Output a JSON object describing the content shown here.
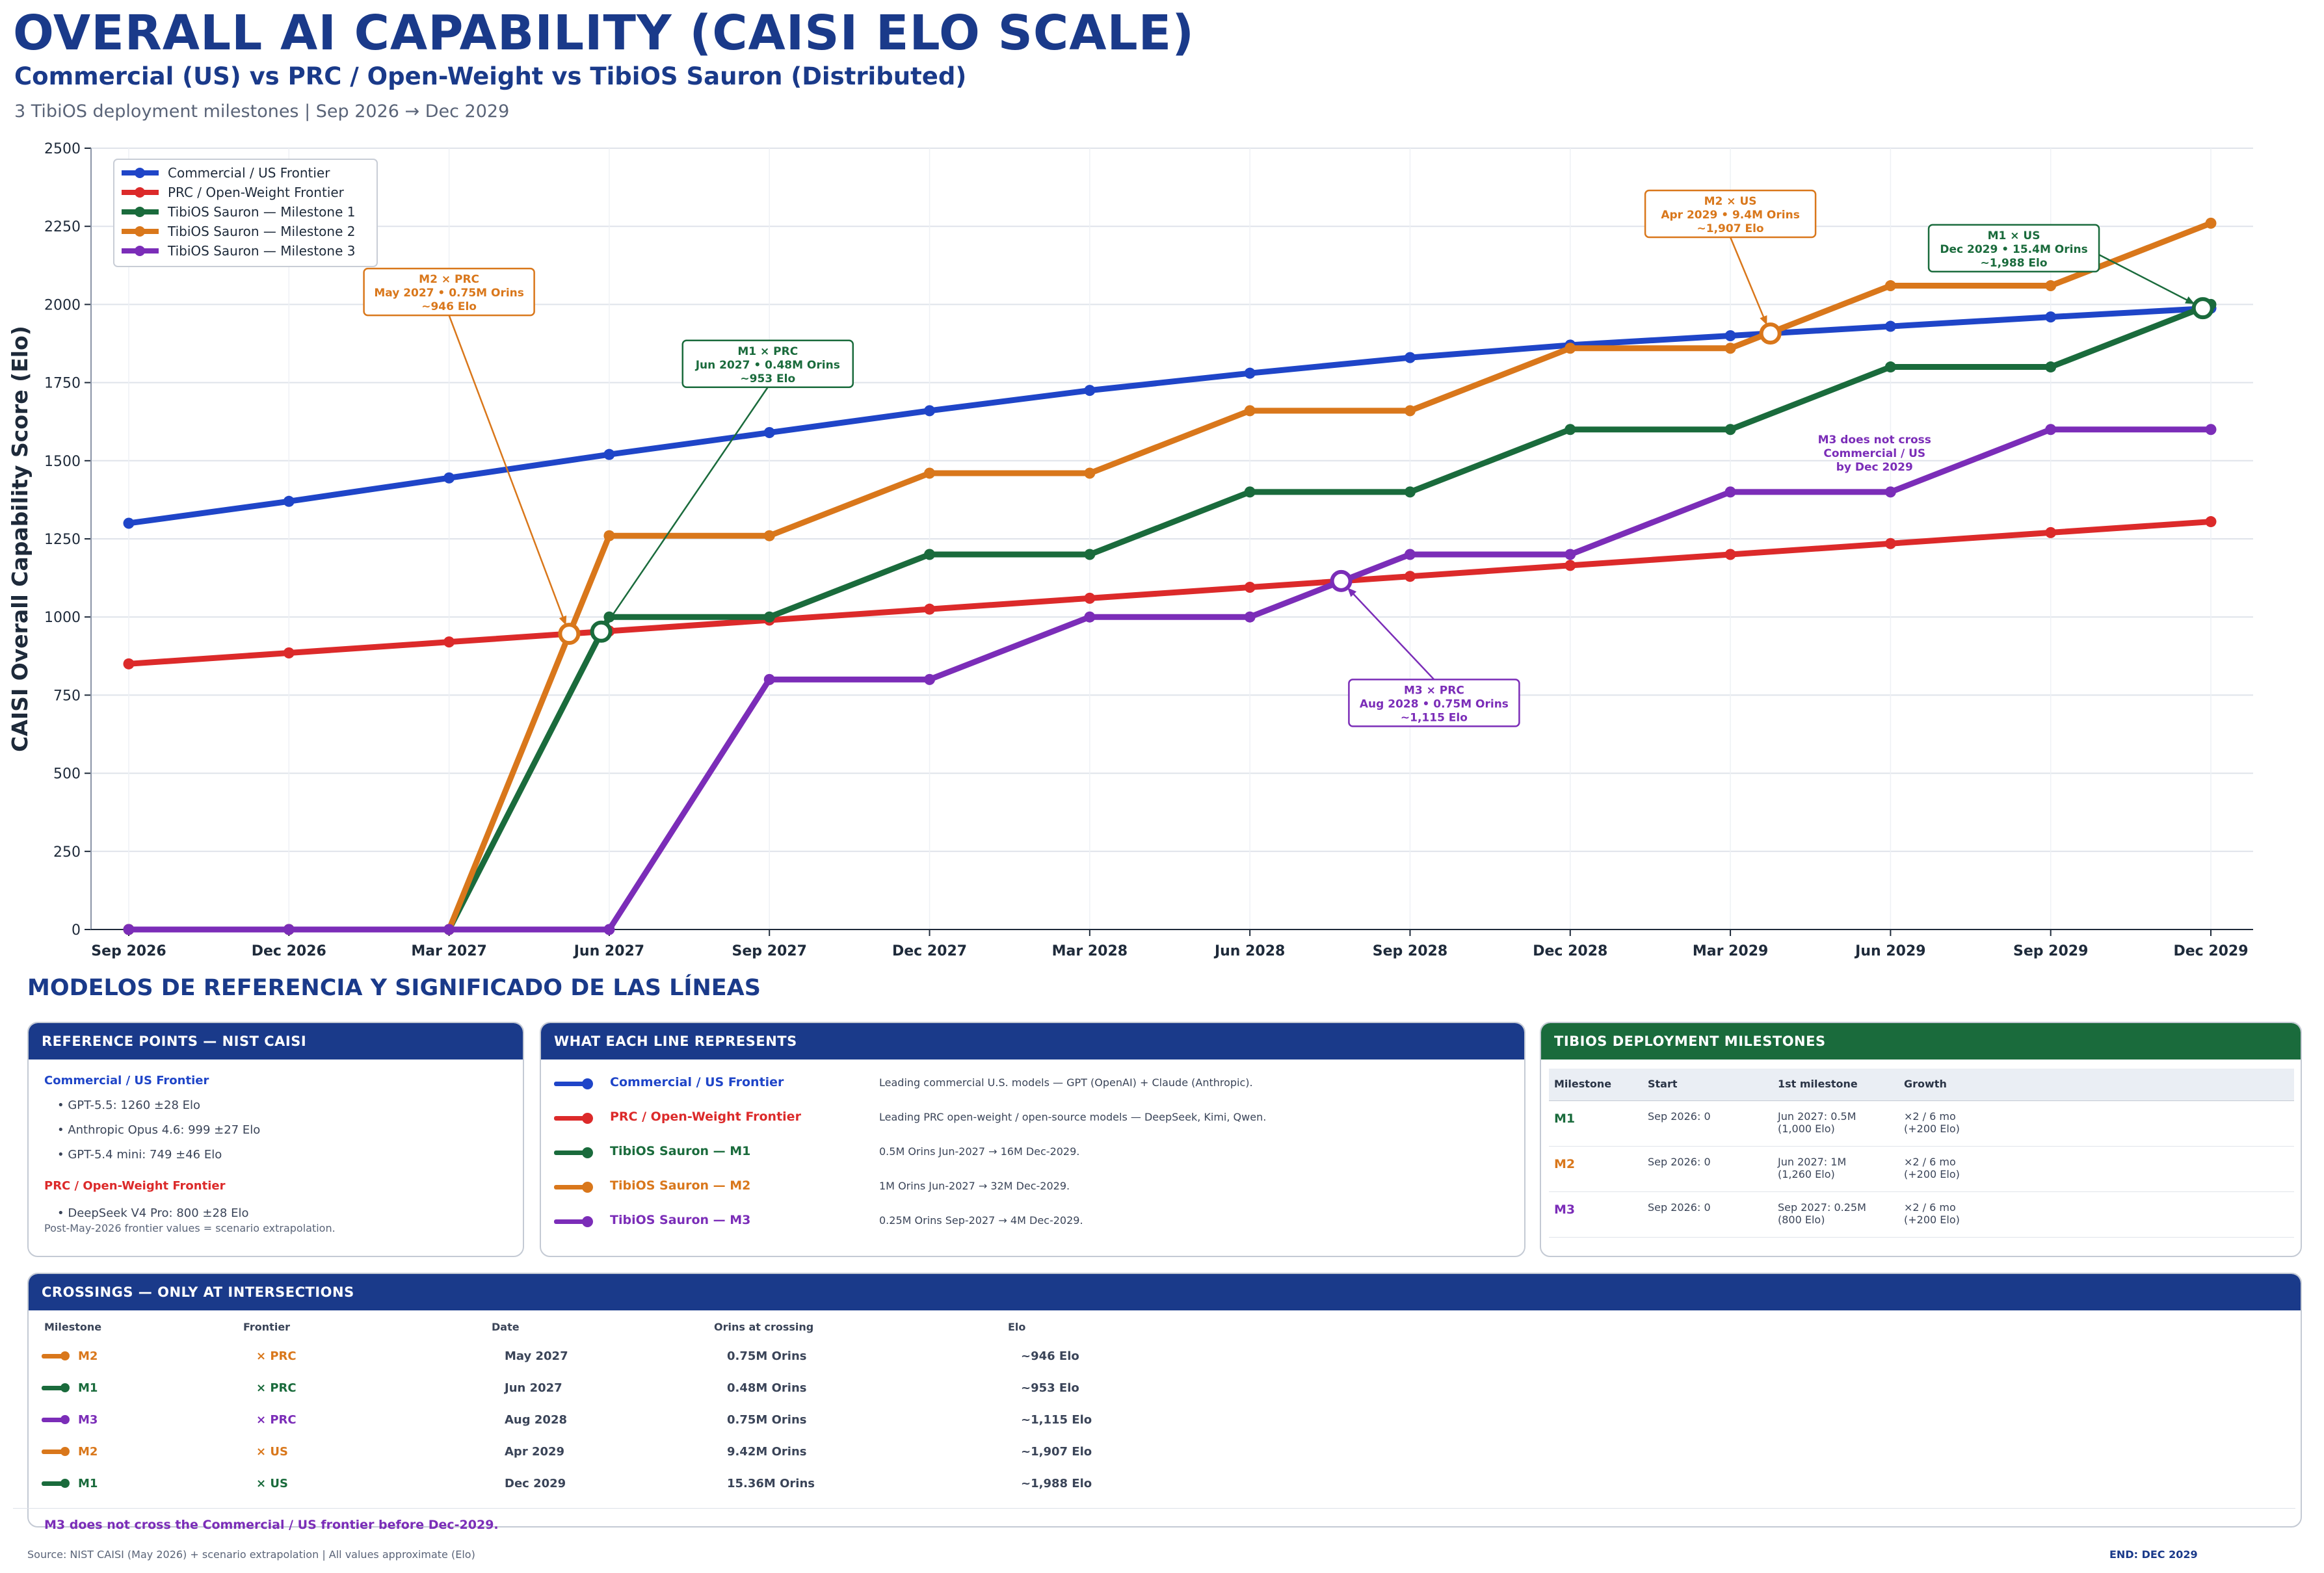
{
  "title": "OVERALL AI CAPABILITY (CAISI ELO SCALE)",
  "subtitle": "Commercial (US) vs PRC / Open-Weight vs TibiOS Sauron (Distributed)",
  "milestones_note": "3 TibiOS deployment milestones | Sep 2026 → Dec 2029",
  "chart_data": {
    "type": "line",
    "ylabel": "CAISI Overall Capability Score (Elo)",
    "xlabel": "",
    "ylim": [
      0,
      2500
    ],
    "yticks": [
      0,
      250,
      500,
      750,
      1000,
      1250,
      1500,
      1750,
      2000,
      2250,
      2500
    ],
    "x": [
      "Sep 2026",
      "Dec 2026",
      "Mar 2027",
      "Jun 2027",
      "Sep 2027",
      "Dec 2027",
      "Mar 2028",
      "Jun 2028",
      "Sep 2028",
      "Dec 2028",
      "Mar 2029",
      "Jun 2029",
      "Sep 2029",
      "Dec 2029"
    ],
    "grid": true,
    "legend_position": "top-left",
    "series": [
      {
        "name": "Commercial / US Frontier",
        "color": "#1f45c8",
        "values": [
          1300,
          1370,
          1445,
          1520,
          1590,
          1660,
          1725,
          1780,
          1830,
          1870,
          1900,
          1930,
          1960,
          1988
        ]
      },
      {
        "name": "PRC / Open-Weight Frontier",
        "color": "#dc2a2a",
        "values": [
          850,
          885,
          920,
          955,
          990,
          1025,
          1060,
          1095,
          1130,
          1165,
          1200,
          1235,
          1270,
          1305
        ]
      },
      {
        "name": "TibiOS Sauron — Milestone 1",
        "color": "#1a6b3c",
        "values": [
          0,
          0,
          0,
          1000,
          1000,
          1200,
          1200,
          1400,
          1400,
          1600,
          1600,
          1800,
          1800,
          2000
        ]
      },
      {
        "name": "TibiOS Sauron — Milestone 2",
        "color": "#d9771b",
        "values": [
          0,
          0,
          0,
          1260,
          1260,
          1460,
          1460,
          1660,
          1660,
          1860,
          1860,
          2060,
          2060,
          2260
        ]
      },
      {
        "name": "TibiOS Sauron — Milestone 3",
        "color": "#7b2db8",
        "values": [
          0,
          0,
          0,
          0,
          800,
          800,
          1000,
          1000,
          1200,
          1200,
          1400,
          1400,
          1600,
          1600
        ]
      }
    ],
    "crossing_markers": [
      {
        "x": 2.75,
        "y": 946,
        "color": "#d9771b"
      },
      {
        "x": 2.95,
        "y": 953,
        "color": "#1a6b3c"
      },
      {
        "x": 7.57,
        "y": 1115,
        "color": "#7b2db8"
      },
      {
        "x": 10.25,
        "y": 1907,
        "color": "#d9771b"
      },
      {
        "x": 12.95,
        "y": 1988,
        "color": "#1a6b3c"
      }
    ],
    "annotations": [
      {
        "lines": [
          "M2 × PRC",
          "May 2027  •  0.75M Orins",
          "~946 Elo"
        ],
        "color": "#d9771b",
        "box": [
          2.0,
          2040
        ],
        "point": [
          2.75,
          946
        ],
        "anchor": "bottom"
      },
      {
        "lines": [
          "M1 × PRC",
          "Jun 2027  •  0.48M Orins",
          "~953 Elo"
        ],
        "color": "#1a6b3c",
        "box": [
          3.99,
          1810
        ],
        "point": [
          2.95,
          953
        ],
        "anchor": "bottom"
      },
      {
        "lines": [
          "M3 × PRC",
          "Aug 2028  •  0.75M Orins",
          "~1,115 Elo"
        ],
        "color": "#7b2db8",
        "box": [
          8.15,
          725
        ],
        "point": [
          7.57,
          1115
        ],
        "anchor": "top"
      },
      {
        "lines": [
          "M2 × US",
          "Apr 2029  •  9.4M Orins",
          "~1,907 Elo"
        ],
        "color": "#d9771b",
        "box": [
          10.0,
          2290
        ],
        "point": [
          10.25,
          1907
        ],
        "anchor": "bottom"
      },
      {
        "lines": [
          "M1 × US",
          "Dec 2029  •  15.4M Orins",
          "~1,988 Elo"
        ],
        "color": "#1a6b3c",
        "box": [
          11.77,
          2180
        ],
        "point": [
          12.95,
          1988
        ],
        "anchor": "right"
      }
    ],
    "text_notes": [
      {
        "lines": [
          "M3 does not cross",
          "Commercial / US",
          "by Dec 2029"
        ],
        "color": "#7b2db8",
        "at": [
          10.9,
          1535
        ]
      }
    ]
  },
  "reference_heading": "MODELOS DE REFERENCIA Y SIGNIFICADO DE LAS LÍNEAS",
  "reference_points": {
    "header": "REFERENCE POINTS — NIST CAISI",
    "commercial_label": "Commercial / US Frontier",
    "commercial_items": [
      "• GPT-5.5: 1260 ±28 Elo",
      "• Anthropic Opus 4.6: 999 ±27 Elo",
      "• GPT-5.4 mini: 749 ±46 Elo"
    ],
    "prc_label": "PRC / Open-Weight Frontier",
    "prc_items": [
      "• DeepSeek V4 Pro: 800 ±28 Elo"
    ],
    "note": "Post-May-2026 frontier values = scenario extrapolation."
  },
  "lines_panel": {
    "header": "WHAT EACH LINE REPRESENTS",
    "rows": [
      {
        "name": "Commercial / US Frontier",
        "color": "#1f45c8",
        "desc": "Leading commercial U.S. models — GPT (OpenAI) + Claude (Anthropic)."
      },
      {
        "name": "PRC / Open-Weight Frontier",
        "color": "#dc2a2a",
        "desc": "Leading PRC open-weight / open-source models — DeepSeek, Kimi, Qwen."
      },
      {
        "name": "TibiOS Sauron — M1",
        "color": "#1a6b3c",
        "desc": "0.5M Orins Jun-2027 → 16M Dec-2029."
      },
      {
        "name": "TibiOS Sauron — M2",
        "color": "#d9771b",
        "desc": "1M Orins Jun-2027 → 32M Dec-2029."
      },
      {
        "name": "TibiOS Sauron — M3",
        "color": "#7b2db8",
        "desc": "0.25M Orins Sep-2027 → 4M Dec-2029."
      }
    ]
  },
  "milestones_panel": {
    "header": "TIBIOS DEPLOYMENT MILESTONES",
    "columns": [
      "Milestone",
      "Start",
      "1st milestone",
      "Growth"
    ],
    "rows": [
      {
        "name": "M1",
        "color": "#1a6b3c",
        "start": "Sep 2026: 0",
        "first1": "Jun 2027: 0.5M",
        "first2": "(1,000 Elo)",
        "growth1": "×2 / 6 mo",
        "growth2": "(+200 Elo)"
      },
      {
        "name": "M2",
        "color": "#d9771b",
        "start": "Sep 2026: 0",
        "first1": "Jun 2027: 1M",
        "first2": "(1,260 Elo)",
        "growth1": "×2 / 6 mo",
        "growth2": "(+200 Elo)"
      },
      {
        "name": "M3",
        "color": "#7b2db8",
        "start": "Sep 2026: 0",
        "first1": "Sep 2027: 0.25M",
        "first2": "(800 Elo)",
        "growth1": "×2 / 6 mo",
        "growth2": "(+200 Elo)"
      }
    ]
  },
  "crossings_panel": {
    "header": "CROSSINGS — ONLY AT INTERSECTIONS",
    "columns": [
      "Milestone",
      "Frontier",
      "Date",
      "Orins at crossing",
      "Elo"
    ],
    "rows": [
      {
        "milestone": "M2",
        "frontier": "× PRC",
        "date": "May 2027",
        "orins": "0.75M Orins",
        "elo": "~946 Elo",
        "color": "#d9771b"
      },
      {
        "milestone": "M1",
        "frontier": "× PRC",
        "date": "Jun 2027",
        "orins": "0.48M Orins",
        "elo": "~953 Elo",
        "color": "#1a6b3c"
      },
      {
        "milestone": "M3",
        "frontier": "× PRC",
        "date": "Aug 2028",
        "orins": "0.75M Orins",
        "elo": "~1,115 Elo",
        "color": "#7b2db8"
      },
      {
        "milestone": "M2",
        "frontier": "× US",
        "date": "Apr 2029",
        "orins": "9.42M Orins",
        "elo": "~1,907 Elo",
        "color": "#d9771b"
      },
      {
        "milestone": "M1",
        "frontier": "× US",
        "date": "Dec 2029",
        "orins": "15.36M Orins",
        "elo": "~1,988 Elo",
        "color": "#1a6b3c"
      }
    ],
    "note": "M3 does not cross the Commercial / US frontier before Dec-2029."
  },
  "source": "Source: NIST CAISI (May 2026) + scenario extrapolation  |  All values approximate (Elo)",
  "end_label": "END: DEC 2029"
}
